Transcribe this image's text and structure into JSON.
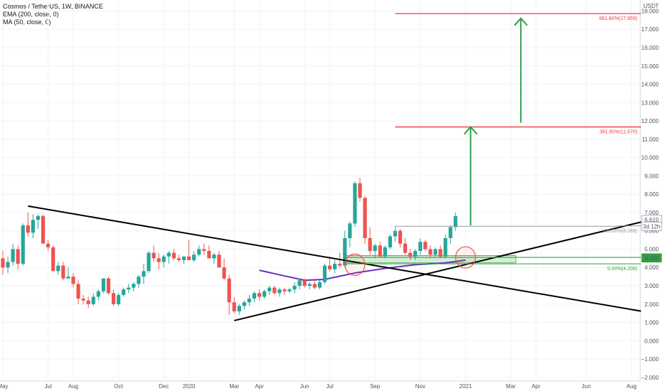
{
  "legend": {
    "title": "Cosmos / TetherUS, 1W, BINANCE",
    "ema": "EMA (200, close, 0)",
    "ma": "MA (50, close, 0)"
  },
  "colors": {
    "up": "#26a69a",
    "down": "#ef5350",
    "trendline": "#000000",
    "ma": "#6a2ec2",
    "fib_line": "#f23645",
    "fib_label": "#f23645",
    "arrow": "#2ea043",
    "support_zone": "#a5d6a7",
    "support_line": "#2ea043",
    "circle": "#ef5350",
    "range_line": "#9598a1",
    "grid": "#f0f3fa"
  },
  "chart_data": {
    "type": "candlestick",
    "title": "Cosmos / TetherUS, 1W, BINANCE",
    "currency_label": "USDT",
    "ylim": [
      -2.2,
      18.6
    ],
    "y_ticks": [
      -2.0,
      -1.0,
      0.0,
      1.0,
      2.0,
      3.0,
      4.0,
      5.0,
      6.0,
      7.0,
      8.0,
      9.0,
      10.0,
      11.0,
      12.0,
      13.0,
      14.0,
      15.0,
      16.0,
      17.0,
      18.0
    ],
    "x_ticks": [
      {
        "week": 0,
        "label": "May"
      },
      {
        "week": 9,
        "label": "Jul"
      },
      {
        "week": 14,
        "label": "Aug"
      },
      {
        "week": 23,
        "label": "Oct"
      },
      {
        "week": 32,
        "label": "Dec"
      },
      {
        "week": 37,
        "label": "2020"
      },
      {
        "week": 46,
        "label": "Mar"
      },
      {
        "week": 51,
        "label": "Apr"
      },
      {
        "week": 60,
        "label": "Jun"
      },
      {
        "week": 65,
        "label": "Jul"
      },
      {
        "week": 74,
        "label": "Sep"
      },
      {
        "week": 83,
        "label": "Nov"
      },
      {
        "week": 92,
        "label": "2021"
      },
      {
        "week": 101,
        "label": "Mar"
      },
      {
        "week": 106,
        "label": "Apr"
      },
      {
        "week": 116,
        "label": "Jun"
      },
      {
        "week": 125,
        "label": "Aug"
      }
    ],
    "candles": [
      [
        4.5,
        4.9,
        3.6,
        4.0
      ],
      [
        4.0,
        4.6,
        3.7,
        4.3
      ],
      [
        4.3,
        5.3,
        4.1,
        5.0
      ],
      [
        5.0,
        5.2,
        3.9,
        4.2
      ],
      [
        4.2,
        6.4,
        4.1,
        6.3
      ],
      [
        6.3,
        7.0,
        5.7,
        5.9
      ],
      [
        5.9,
        6.9,
        5.6,
        6.6
      ],
      [
        6.6,
        6.9,
        6.1,
        6.8
      ],
      [
        6.8,
        6.9,
        5.3,
        5.3
      ],
      [
        5.3,
        5.5,
        4.9,
        5.1
      ],
      [
        5.1,
        5.2,
        3.9,
        3.8
      ],
      [
        3.8,
        4.3,
        3.6,
        4.1
      ],
      [
        4.1,
        4.3,
        3.3,
        3.4
      ],
      [
        3.4,
        4.0,
        3.4,
        3.5
      ],
      [
        3.5,
        3.7,
        2.9,
        3.1
      ],
      [
        3.1,
        3.3,
        2.0,
        2.3
      ],
      [
        2.3,
        2.5,
        2.0,
        2.2
      ],
      [
        2.2,
        2.4,
        1.8,
        2.0
      ],
      [
        2.0,
        2.6,
        1.9,
        2.4
      ],
      [
        2.4,
        2.8,
        2.2,
        2.7
      ],
      [
        2.7,
        3.2,
        2.6,
        3.4
      ],
      [
        3.4,
        3.5,
        2.5,
        2.6
      ],
      [
        2.6,
        2.8,
        1.9,
        2.0
      ],
      [
        2.0,
        2.6,
        1.9,
        2.5
      ],
      [
        2.5,
        2.9,
        2.4,
        2.8
      ],
      [
        2.8,
        3.1,
        2.6,
        2.9
      ],
      [
        2.9,
        3.2,
        2.7,
        3.1
      ],
      [
        3.1,
        3.6,
        2.9,
        3.5
      ],
      [
        3.5,
        4.2,
        3.1,
        3.8
      ],
      [
        3.8,
        4.9,
        3.7,
        4.8
      ],
      [
        4.8,
        5.2,
        4.3,
        4.5
      ],
      [
        4.5,
        4.8,
        3.9,
        4.3
      ],
      [
        4.3,
        4.7,
        4.0,
        4.6
      ],
      [
        4.6,
        4.9,
        4.2,
        4.8
      ],
      [
        4.8,
        5.0,
        4.4,
        4.5
      ],
      [
        4.5,
        4.7,
        4.3,
        4.4
      ],
      [
        4.4,
        4.6,
        4.2,
        4.6
      ],
      [
        4.6,
        5.5,
        4.5,
        4.4
      ],
      [
        4.4,
        4.9,
        4.3,
        4.7
      ],
      [
        4.7,
        5.2,
        4.6,
        5.0
      ],
      [
        5.0,
        5.3,
        4.7,
        4.9
      ],
      [
        4.9,
        5.2,
        4.6,
        4.5
      ],
      [
        4.5,
        4.8,
        4.2,
        4.7
      ],
      [
        4.7,
        4.9,
        4.1,
        4.0
      ],
      [
        4.0,
        4.5,
        3.3,
        3.4
      ],
      [
        3.4,
        3.6,
        1.4,
        2.1
      ],
      [
        2.1,
        2.4,
        1.5,
        1.6
      ],
      [
        1.6,
        2.0,
        1.4,
        1.9
      ],
      [
        1.9,
        2.2,
        1.7,
        2.1
      ],
      [
        2.1,
        2.5,
        1.9,
        2.3
      ],
      [
        2.3,
        2.7,
        2.1,
        2.6
      ],
      [
        2.6,
        2.8,
        2.2,
        2.4
      ],
      [
        2.4,
        2.8,
        2.3,
        2.7
      ],
      [
        2.7,
        3.0,
        2.5,
        2.9
      ],
      [
        2.9,
        3.0,
        2.5,
        2.6
      ],
      [
        2.6,
        2.9,
        2.4,
        2.8
      ],
      [
        2.8,
        2.9,
        2.5,
        2.7
      ],
      [
        2.7,
        2.9,
        2.6,
        2.8
      ],
      [
        2.8,
        3.2,
        2.6,
        3.0
      ],
      [
        3.0,
        3.4,
        2.8,
        3.3
      ],
      [
        3.3,
        3.4,
        2.9,
        3.0
      ],
      [
        3.0,
        3.2,
        2.8,
        3.1
      ],
      [
        3.1,
        3.3,
        2.8,
        2.9
      ],
      [
        2.9,
        3.3,
        2.8,
        3.2
      ],
      [
        3.2,
        4.2,
        3.1,
        4.1
      ],
      [
        4.1,
        4.6,
        3.8,
        3.9
      ],
      [
        3.9,
        4.4,
        3.7,
        4.2
      ],
      [
        4.2,
        4.8,
        4.0,
        4.1
      ],
      [
        4.1,
        6.0,
        4.0,
        5.6
      ],
      [
        5.6,
        6.5,
        5.1,
        6.4
      ],
      [
        6.4,
        8.7,
        6.2,
        8.6
      ],
      [
        8.6,
        8.9,
        7.6,
        7.8
      ],
      [
        7.8,
        7.9,
        5.3,
        5.6
      ],
      [
        5.6,
        6.2,
        4.7,
        4.9
      ],
      [
        4.9,
        5.3,
        4.5,
        5.2
      ],
      [
        5.2,
        5.4,
        4.6,
        4.6
      ],
      [
        4.6,
        5.2,
        4.5,
        5.1
      ],
      [
        5.1,
        5.8,
        5.0,
        5.7
      ],
      [
        5.7,
        6.2,
        5.4,
        6.0
      ],
      [
        6.0,
        6.1,
        5.1,
        5.3
      ],
      [
        5.3,
        5.6,
        4.7,
        4.8
      ],
      [
        4.8,
        5.0,
        4.4,
        4.6
      ],
      [
        4.6,
        5.0,
        4.4,
        4.9
      ],
      [
        4.9,
        5.6,
        4.7,
        5.4
      ],
      [
        5.4,
        5.5,
        4.9,
        5.0
      ],
      [
        5.0,
        5.2,
        4.5,
        4.7
      ],
      [
        4.7,
        5.1,
        4.6,
        5.0
      ],
      [
        5.0,
        5.2,
        4.5,
        4.6
      ],
      [
        4.6,
        5.8,
        4.5,
        5.6
      ],
      [
        5.6,
        6.3,
        5.3,
        6.2
      ],
      [
        6.2,
        7.0,
        6.0,
        6.8
      ]
    ],
    "ma_curve": [
      [
        51,
        3.85
      ],
      [
        55,
        3.6
      ],
      [
        60,
        3.3
      ],
      [
        64,
        3.35
      ],
      [
        70,
        3.7
      ],
      [
        76,
        3.95
      ],
      [
        82,
        4.15
      ],
      [
        88,
        4.25
      ],
      [
        92,
        4.4
      ]
    ],
    "trendlines": [
      {
        "name": "downtrend",
        "from": [
          5,
          7.35
        ],
        "to": [
          140,
          1.0
        ]
      },
      {
        "name": "uptrend",
        "from": [
          46,
          1.1
        ],
        "to": [
          140,
          7.35
        ]
      }
    ],
    "support_zone": {
      "from_week": 68,
      "to_week": 102,
      "low": 4.25,
      "high": 4.65
    },
    "support_line": {
      "from_week": 68,
      "to_week": 140,
      "value": 4.55
    },
    "zero_fib_line": {
      "from_week": 68,
      "to_week": 140,
      "value": 4.2
    },
    "range_box": {
      "from_week": 78,
      "to_week": 122,
      "value": 6.25
    },
    "fib_levels": [
      {
        "label": "661.80%(17.859)",
        "value": 17.859,
        "from_week": 78,
        "to_week": 140
      },
      {
        "label": "361.80%(11.670)",
        "value": 11.67,
        "from_week": 78,
        "to_week": 140
      },
      {
        "label": "100.00%(6.269)",
        "value": 6.269,
        "from_week": 122,
        "to_week": 140,
        "color": "#9598a1"
      },
      {
        "label": "0.00%(4.206)",
        "value": 4.206,
        "from_week": 122,
        "to_week": 140,
        "color": "#2ea043"
      }
    ],
    "arrows": [
      {
        "x_week": 93,
        "from": 6.3,
        "to": 11.67
      },
      {
        "x_week": 103,
        "from": 11.9,
        "to": 17.6
      }
    ],
    "circles": [
      {
        "week": 70,
        "value": 4.15
      },
      {
        "week": 92,
        "value": 4.55
      }
    ],
    "price_labels": [
      {
        "text": "6.610",
        "value": 6.61,
        "bg": "#ffffff",
        "fg": "#131722"
      },
      {
        "text": "3d 12h",
        "value": 6.25,
        "bg": "#ffffff",
        "fg": "#131722"
      },
      {
        "text": "4.520",
        "value": 4.52,
        "bg": "#2ea043",
        "fg": "#ffffff"
      }
    ]
  }
}
